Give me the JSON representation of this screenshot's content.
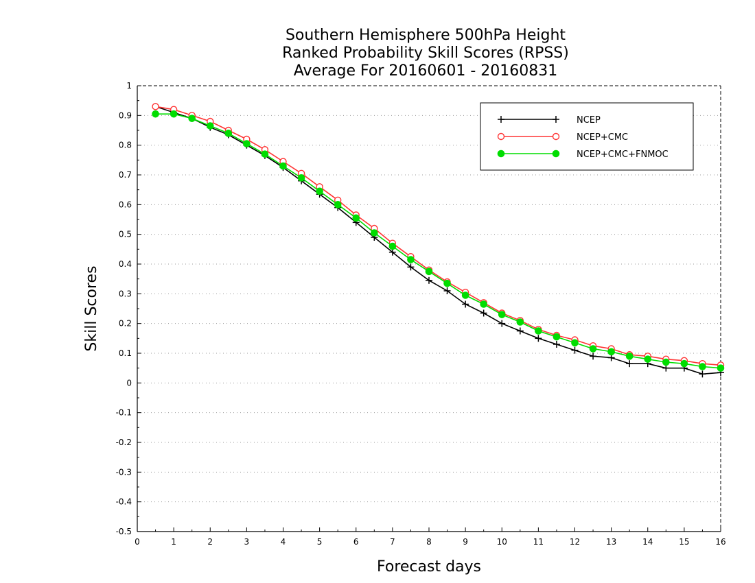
{
  "chart_data": {
    "type": "line",
    "title": [
      "Southern Hemisphere 500hPa Height",
      "Ranked Probability Skill Scores (RPSS)",
      "Average For 20160601 - 20160831"
    ],
    "xlabel": "Forecast days",
    "ylabel": "Skill Scores",
    "xlim": [
      0,
      16
    ],
    "ylim": [
      -0.5,
      1
    ],
    "x_ticks": [
      "0",
      "1",
      "2",
      "3",
      "4",
      "5",
      "6",
      "7",
      "8",
      "9",
      "10",
      "11",
      "12",
      "13",
      "14",
      "15",
      "16"
    ],
    "y_ticks": [
      "1",
      "0.9",
      "0.8",
      "0.7",
      "0.6",
      "0.5",
      "0.4",
      "0.3",
      "0.2",
      "0.1",
      "0",
      "-0.1",
      "-0.2",
      "-0.3",
      "-0.4",
      "-0.5"
    ],
    "grid": "horizontal-dotted",
    "legend": "top-right",
    "x": [
      0.5,
      1,
      1.5,
      2,
      2.5,
      3,
      3.5,
      4,
      4.5,
      5,
      5.5,
      6,
      6.5,
      7,
      7.5,
      8,
      8.5,
      9,
      9.5,
      10,
      10.5,
      11,
      11.5,
      12,
      12.5,
      13,
      13.5,
      14,
      14.5,
      15,
      15.5,
      16
    ],
    "series": [
      {
        "name": "NCEP",
        "color": "#000000",
        "marker": "plus",
        "values": [
          0.93,
          0.91,
          0.89,
          0.86,
          0.835,
          0.8,
          0.765,
          0.725,
          0.68,
          0.635,
          0.59,
          0.54,
          0.49,
          0.44,
          0.39,
          0.345,
          0.31,
          0.265,
          0.235,
          0.2,
          0.175,
          0.15,
          0.13,
          0.11,
          0.09,
          0.085,
          0.065,
          0.065,
          0.05,
          0.05,
          0.03,
          0.035
        ]
      },
      {
        "name": "NCEP+CMC",
        "color": "#ff3333",
        "marker": "open-circle",
        "values": [
          0.93,
          0.92,
          0.9,
          0.88,
          0.85,
          0.82,
          0.785,
          0.745,
          0.705,
          0.66,
          0.615,
          0.565,
          0.52,
          0.47,
          0.425,
          0.38,
          0.34,
          0.305,
          0.27,
          0.235,
          0.21,
          0.18,
          0.16,
          0.145,
          0.125,
          0.115,
          0.095,
          0.09,
          0.08,
          0.075,
          0.065,
          0.06
        ]
      },
      {
        "name": "NCEP+CMC+FNMOC",
        "color": "#00dd00",
        "marker": "filled-circle",
        "values": [
          0.905,
          0.905,
          0.89,
          0.865,
          0.84,
          0.805,
          0.77,
          0.73,
          0.69,
          0.645,
          0.6,
          0.555,
          0.505,
          0.46,
          0.415,
          0.375,
          0.335,
          0.295,
          0.265,
          0.23,
          0.205,
          0.175,
          0.155,
          0.135,
          0.115,
          0.105,
          0.09,
          0.08,
          0.07,
          0.065,
          0.055,
          0.05
        ]
      }
    ]
  }
}
